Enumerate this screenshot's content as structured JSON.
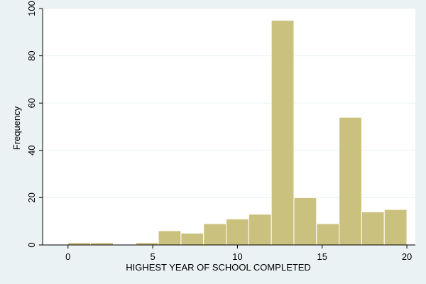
{
  "chart_data": {
    "type": "bar",
    "xlabel": "HIGHEST YEAR OF SCHOOL COMPLETED",
    "ylabel": "Frequency",
    "xlim": [
      -1.5,
      20.5
    ],
    "ylim": [
      0,
      100
    ],
    "xticks": [
      0,
      5,
      10,
      15,
      20
    ],
    "yticks": [
      0,
      20,
      40,
      60,
      80,
      100
    ],
    "grid": true,
    "bins": [
      {
        "x0": 0.0,
        "x1": 1.333,
        "value": 1
      },
      {
        "x0": 1.333,
        "x1": 2.667,
        "value": 1
      },
      {
        "x0": 2.667,
        "x1": 4.0,
        "value": 0
      },
      {
        "x0": 4.0,
        "x1": 5.333,
        "value": 1
      },
      {
        "x0": 5.333,
        "x1": 6.667,
        "value": 6
      },
      {
        "x0": 6.667,
        "x1": 8.0,
        "value": 5
      },
      {
        "x0": 8.0,
        "x1": 9.333,
        "value": 9
      },
      {
        "x0": 9.333,
        "x1": 10.667,
        "value": 11
      },
      {
        "x0": 10.667,
        "x1": 12.0,
        "value": 13
      },
      {
        "x0": 12.0,
        "x1": 13.333,
        "value": 95
      },
      {
        "x0": 13.333,
        "x1": 14.667,
        "value": 20
      },
      {
        "x0": 14.667,
        "x1": 16.0,
        "value": 9
      },
      {
        "x0": 16.0,
        "x1": 17.333,
        "value": 54
      },
      {
        "x0": 17.333,
        "x1": 18.667,
        "value": 14
      },
      {
        "x0": 18.667,
        "x1": 20.0,
        "value": 15
      }
    ],
    "colors": {
      "bar_fill": "#cbc17e",
      "bar_stroke": "#ffffff",
      "plot_bg": "#ffffff",
      "outer_bg": "#eaf2f3",
      "grid": "#eaf2f3",
      "axis": "#000000"
    }
  }
}
